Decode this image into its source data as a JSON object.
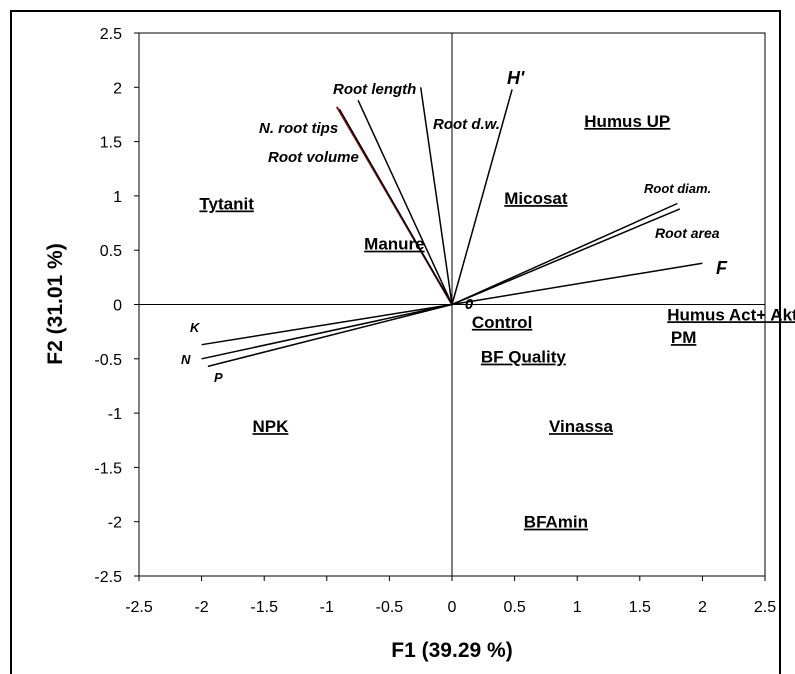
{
  "chart_data": {
    "type": "scatter",
    "title": "",
    "xlabel": "F1 (39.29 %)",
    "ylabel": "F2 (31.01 %)",
    "xlim": [
      -2.5,
      2.5
    ],
    "ylim": [
      -2.5,
      2.5
    ],
    "x_ticks": [
      "-2.5",
      "-2",
      "-1.5",
      "-1",
      "-0.5",
      "0",
      "0.5",
      "1",
      "1.5",
      "2",
      "2.5"
    ],
    "y_ticks": [
      "2.5",
      "2",
      "1.5",
      "1",
      "0.5",
      "0",
      "-0.5",
      "-1",
      "-1.5",
      "-2",
      "-2.5"
    ],
    "origin_label": "0",
    "variables": [
      {
        "name": "Root length",
        "x": -0.75,
        "y": 1.88
      },
      {
        "name": "N. root tips",
        "x": -0.92,
        "y": 1.82,
        "color": "#8b1a1a"
      },
      {
        "name": "Root volume",
        "x": -0.9,
        "y": 1.8
      },
      {
        "name": "Root d.w.",
        "x": -0.25,
        "y": 2.0
      },
      {
        "name": "H'",
        "x": 0.48,
        "y": 1.98
      },
      {
        "name": "Root diam.",
        "x": 1.8,
        "y": 0.93
      },
      {
        "name": "Root  area",
        "x": 1.82,
        "y": 0.88
      },
      {
        "name": "F",
        "x": 2.0,
        "y": 0.38
      },
      {
        "name": "K",
        "x": -2.0,
        "y": -0.37
      },
      {
        "name": "N",
        "x": -2.0,
        "y": -0.5
      },
      {
        "name": "P",
        "x": -1.95,
        "y": -0.57
      }
    ],
    "observations": [
      {
        "name": "Humus  UP",
        "x": 1.4,
        "y": 1.69
      },
      {
        "name": "Tytanit",
        "x": -1.8,
        "y": 0.93
      },
      {
        "name": "Micosat",
        "x": 0.67,
        "y": 0.98
      },
      {
        "name": "Manure",
        "x": -0.46,
        "y": 0.56
      },
      {
        "name": "Control",
        "x": 0.4,
        "y": -0.16
      },
      {
        "name": "Humus Act+ Akt",
        "x": 2.24,
        "y": -0.09
      },
      {
        "name": "PM",
        "x": 1.85,
        "y": -0.3
      },
      {
        "name": "BF Quality",
        "x": 0.57,
        "y": -0.48
      },
      {
        "name": "NPK",
        "x": -1.45,
        "y": -1.12
      },
      {
        "name": "Vinassa",
        "x": 1.03,
        "y": -1.12
      },
      {
        "name": "BFAmin",
        "x": 0.83,
        "y": -2.0
      }
    ]
  }
}
